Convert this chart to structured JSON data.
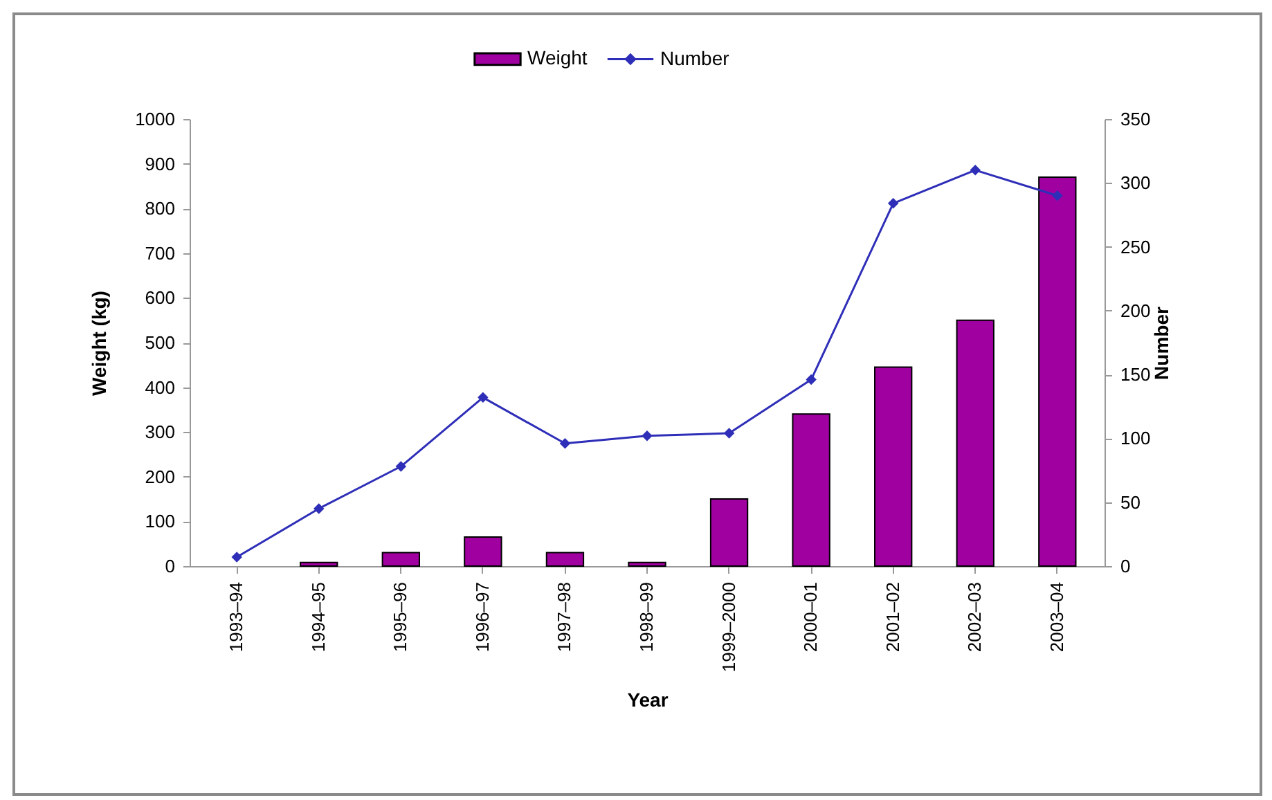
{
  "chart_data": {
    "type": "bar",
    "xlabel": "Year",
    "ylabel": "Weight (kg)",
    "y2label": "Number",
    "categories": [
      "1993–94",
      "1994–95",
      "1995–96",
      "1996–97",
      "1997–98",
      "1998–99",
      "1999–2000",
      "2000–01",
      "2001–02",
      "2002–03",
      "2003–04"
    ],
    "series": [
      {
        "name": "Weight",
        "color": "#a000a0",
        "values": [
          null,
          8,
          30,
          65,
          30,
          8,
          150,
          340,
          445,
          550,
          870
        ]
      },
      {
        "name": "Number",
        "type": "line",
        "axis": "y2",
        "color": "#2e2eb8",
        "values": [
          7,
          45,
          78,
          132,
          96,
          102,
          104,
          146,
          284,
          310,
          290
        ]
      }
    ],
    "ylim": [
      0,
      1000
    ],
    "yticks": [
      0,
      100,
      200,
      300,
      400,
      500,
      600,
      700,
      800,
      900,
      1000
    ],
    "y2lim": [
      0,
      350
    ],
    "y2ticks": [
      0,
      50,
      100,
      150,
      200,
      250,
      300,
      350
    ],
    "legend": "top",
    "marker": "diamond",
    "line_style": "solid"
  }
}
